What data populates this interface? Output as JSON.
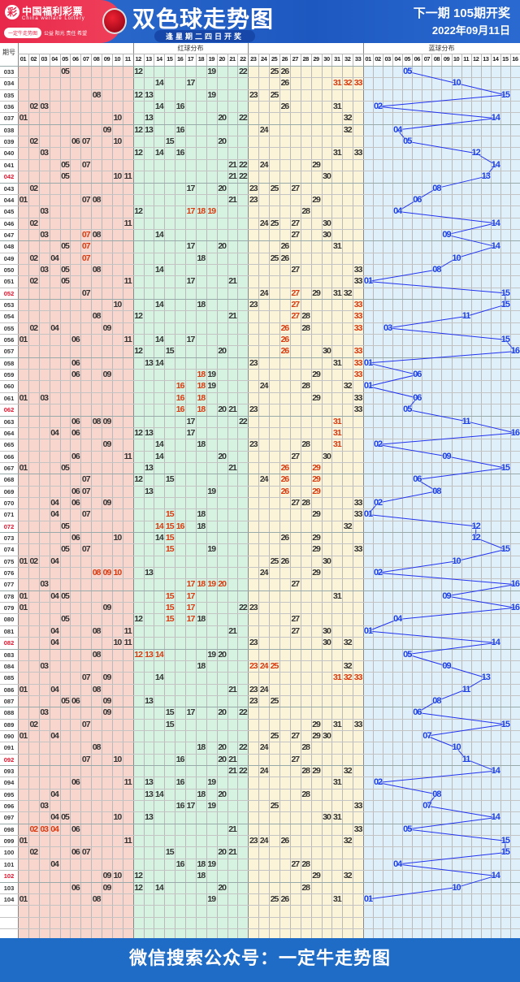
{
  "header": {
    "logo_cn": "中国福利彩票",
    "logo_en": "China welfare Lottery",
    "logo_mark": "彩",
    "pill": "一定牛走势图",
    "slogan": "公益 阳光 责任 希望",
    "title": "双色球走势图",
    "subtitle": "逢星期二四日开奖",
    "next_draw": "下一期 105期开奖",
    "date": "2022年09月11日"
  },
  "table": {
    "period_label": "期号",
    "red_label": "红球分布",
    "blue_label": "蓝球分布",
    "red_cols": [
      "01",
      "02",
      "03",
      "04",
      "05",
      "06",
      "07",
      "08",
      "09",
      "10",
      "11",
      "12",
      "13",
      "14",
      "15",
      "16",
      "17",
      "18",
      "19",
      "20",
      "21",
      "22",
      "23",
      "24",
      "25",
      "26",
      "27",
      "28",
      "29",
      "30",
      "31",
      "32",
      "33"
    ],
    "blue_cols": [
      "01",
      "02",
      "03",
      "04",
      "05",
      "06",
      "07",
      "08",
      "09",
      "10",
      "11",
      "12",
      "13",
      "14",
      "15",
      "16"
    ],
    "red_periods": [
      "042",
      "052",
      "062",
      "072",
      "082",
      "092",
      "102"
    ],
    "rows": [
      {
        "p": "033",
        "red": "05 12 19 22 25 26",
        "hot": "",
        "blue": "05"
      },
      {
        "p": "034",
        "red": "14 17 26 31 32 33",
        "hot": "31 32 33",
        "blue": "10"
      },
      {
        "p": "035",
        "red": "08 12 13 19 23 25",
        "hot": "",
        "blue": "15"
      },
      {
        "p": "036",
        "red": "02 03 14 16 26 31",
        "hot": "",
        "blue": "02"
      },
      {
        "p": "037",
        "red": "01 10 13 20 22 32",
        "hot": "",
        "blue": "14"
      },
      {
        "p": "038",
        "red": "09 12 13 16 24 32",
        "hot": "",
        "blue": "04"
      },
      {
        "p": "039",
        "red": "02 06 07 10 15 20",
        "hot": "",
        "blue": "05"
      },
      {
        "p": "040",
        "red": "03 12 14 16 31 33",
        "hot": "",
        "blue": "12"
      },
      {
        "p": "041",
        "red": "05 07 21 22 24 29",
        "hot": "",
        "blue": "14"
      },
      {
        "p": "042",
        "red": "05 10 11 21 22 30",
        "hot": "",
        "blue": "13"
      },
      {
        "p": "043",
        "red": "02 17 20 23 25 27",
        "hot": "",
        "blue": "08"
      },
      {
        "p": "044",
        "red": "01 07 08 21 23 29",
        "hot": "",
        "blue": "06"
      },
      {
        "p": "045",
        "red": "03 12 17 18 19 28",
        "hot": "17 18 19",
        "blue": "04"
      },
      {
        "p": "046",
        "red": "02 11 24 25 27 30",
        "hot": "",
        "blue": "14"
      },
      {
        "p": "047",
        "red": "03 07 08 14 27 30",
        "hot": "07",
        "blue": "09"
      },
      {
        "p": "048",
        "red": "05 07 17 20 26 31",
        "hot": "07",
        "blue": "14"
      },
      {
        "p": "049",
        "red": "02 04 07 18 25 26",
        "hot": "07",
        "blue": "10"
      },
      {
        "p": "050",
        "red": "03 05 08 14 27 33",
        "hot": "",
        "blue": "08"
      },
      {
        "p": "051",
        "red": "02 05 11 17 21 33",
        "hot": "",
        "blue": "01"
      },
      {
        "p": "052",
        "red": "07 24 27 29 31 32",
        "hot": "27",
        "blue": "15"
      },
      {
        "p": "053",
        "red": "10 14 18 23 27 33",
        "hot": "27 33",
        "blue": "15"
      },
      {
        "p": "054",
        "red": "08 12 21 27 28 33",
        "hot": "27 33",
        "blue": "11"
      },
      {
        "p": "055",
        "red": "02 04 09 26 28 33",
        "hot": "26 33",
        "blue": "03"
      },
      {
        "p": "056",
        "red": "01 06 11 14 17 26",
        "hot": "26",
        "blue": "15"
      },
      {
        "p": "057",
        "red": "12 15 20 26 30 33",
        "hot": "26 33",
        "blue": "16"
      },
      {
        "p": "058",
        "red": "06 13 14 23 31 33",
        "hot": "33",
        "blue": "01"
      },
      {
        "p": "059",
        "red": "06 09 18 19 29 33",
        "hot": "18 33",
        "blue": "06"
      },
      {
        "p": "060",
        "red": "16 18 19 24 28 32",
        "hot": "16 18",
        "blue": "01"
      },
      {
        "p": "061",
        "red": "01 03 16 18 29 33",
        "hot": "16 18",
        "blue": "06"
      },
      {
        "p": "062",
        "red": "16 18 20 21 23 33",
        "hot": "16 18",
        "blue": "05"
      },
      {
        "p": "063",
        "red": "06 08 09 17 22 31",
        "hot": "31",
        "blue": "11"
      },
      {
        "p": "064",
        "red": "04 06 12 13 17 31",
        "hot": "31",
        "blue": "16"
      },
      {
        "p": "065",
        "red": "09 14 18 23 28 31",
        "hot": "31",
        "blue": "02"
      },
      {
        "p": "066",
        "red": "06 11 14 20 27 30",
        "hot": "",
        "blue": "09"
      },
      {
        "p": "067",
        "red": "01 05 13 21 26 29",
        "hot": "26 29",
        "blue": "15"
      },
      {
        "p": "068",
        "red": "07 12 15 24 26 29",
        "hot": "26 29",
        "blue": "06"
      },
      {
        "p": "069",
        "red": "06 07 13 19 26 29",
        "hot": "26 29",
        "blue": "08"
      },
      {
        "p": "070",
        "red": "04 06 09 27 28 33",
        "hot": "",
        "blue": "02"
      },
      {
        "p": "071",
        "red": "04 07 15 18 29 33",
        "hot": "15",
        "blue": "01"
      },
      {
        "p": "072",
        "red": "05 14 15 16 18 32",
        "hot": "14 15 16",
        "blue": "12"
      },
      {
        "p": "073",
        "red": "06 10 14 15 26 29",
        "hot": "15",
        "blue": "12"
      },
      {
        "p": "074",
        "red": "05 07 15 19 29 33",
        "hot": "15",
        "blue": "15"
      },
      {
        "p": "075",
        "red": "01 02 04 25 26 30",
        "hot": "",
        "blue": "10"
      },
      {
        "p": "076",
        "red": "08 09 10 13 24 29",
        "hot": "08 09 10",
        "blue": "02"
      },
      {
        "p": "077",
        "red": "03 17 18 19 20 27",
        "hot": "17 18 19 20",
        "blue": "16"
      },
      {
        "p": "078",
        "red": "01 04 05 15 17 31",
        "hot": "15 17",
        "blue": "09"
      },
      {
        "p": "079",
        "red": "01 09 15 17 22 23",
        "hot": "15 17",
        "blue": "16"
      },
      {
        "p": "080",
        "red": "05 12 15 17 18 27",
        "hot": "15 17",
        "blue": "04"
      },
      {
        "p": "081",
        "red": "04 08 11 21 27 30",
        "hot": "",
        "blue": "01"
      },
      {
        "p": "082",
        "red": "04 10 11 23 30 32",
        "hot": "",
        "blue": "14"
      },
      {
        "p": "083",
        "red": "08 12 13 14 19 20",
        "hot": "12 13 14",
        "blue": "05"
      },
      {
        "p": "084",
        "red": "03 18 23 24 25 32",
        "hot": "23 24 25",
        "blue": "09"
      },
      {
        "p": "085",
        "red": "07 09 14 31 32 33",
        "hot": "31 32 33",
        "blue": "13"
      },
      {
        "p": "086",
        "red": "01 04 08 21 23 24",
        "hot": "",
        "blue": "11"
      },
      {
        "p": "087",
        "red": "05 06 09 13 23 25",
        "hot": "",
        "blue": "08"
      },
      {
        "p": "088",
        "red": "03 09 15 17 20 22",
        "hot": "",
        "blue": "06"
      },
      {
        "p": "089",
        "red": "02 07 15 29 31 33",
        "hot": "",
        "blue": "15"
      },
      {
        "p": "090",
        "red": "01 04 25 27 29 30",
        "hot": "",
        "blue": "07"
      },
      {
        "p": "091",
        "red": "08 18 20 22 24 28",
        "hot": "",
        "blue": "10"
      },
      {
        "p": "092",
        "red": "07 10 16 20 21 27",
        "hot": "",
        "blue": "11"
      },
      {
        "p": "093",
        "red": "21 22 24 28 29 32",
        "hot": "",
        "blue": "14"
      },
      {
        "p": "094",
        "red": "06 11 13 16 19 31",
        "hot": "",
        "blue": "02"
      },
      {
        "p": "095",
        "red": "04 13 14 18 20 28",
        "hot": "",
        "blue": "08"
      },
      {
        "p": "096",
        "red": "03 16 17 19 25 33",
        "hot": "",
        "blue": "07"
      },
      {
        "p": "097",
        "red": "04 05 10 13 30 31",
        "hot": "",
        "blue": "14"
      },
      {
        "p": "098",
        "red": "02 03 04 06 21 33",
        "hot": "02 03 04",
        "blue": "05"
      },
      {
        "p": "099",
        "red": "01 11 23 24 26 32",
        "hot": "",
        "blue": "15"
      },
      {
        "p": "100",
        "red": "02 06 07 15 20 21",
        "hot": "",
        "blue": "15"
      },
      {
        "p": "101",
        "red": "04 16 18 19 27 28",
        "hot": "",
        "blue": "04"
      },
      {
        "p": "102",
        "red": "09 10 12 18 29 32",
        "hot": "",
        "blue": "14"
      },
      {
        "p": "103",
        "red": "06 09 12 14 20 28",
        "hot": "",
        "blue": "10"
      },
      {
        "p": "104",
        "red": "01 08 19 25 26 31",
        "hot": "",
        "blue": "01"
      }
    ]
  },
  "footer": {
    "text": "微信搜索公众号：一定牛走势图"
  },
  "colors": {
    "red_zone1": "#f8d6cd",
    "red_zone2": "#d6f2e1",
    "red_zone3": "#fbf4d9",
    "blue_zone": "#dff0fa",
    "hot": "#d83a10",
    "blue_num": "#1d3fe6",
    "period_red": "#e0102a"
  }
}
